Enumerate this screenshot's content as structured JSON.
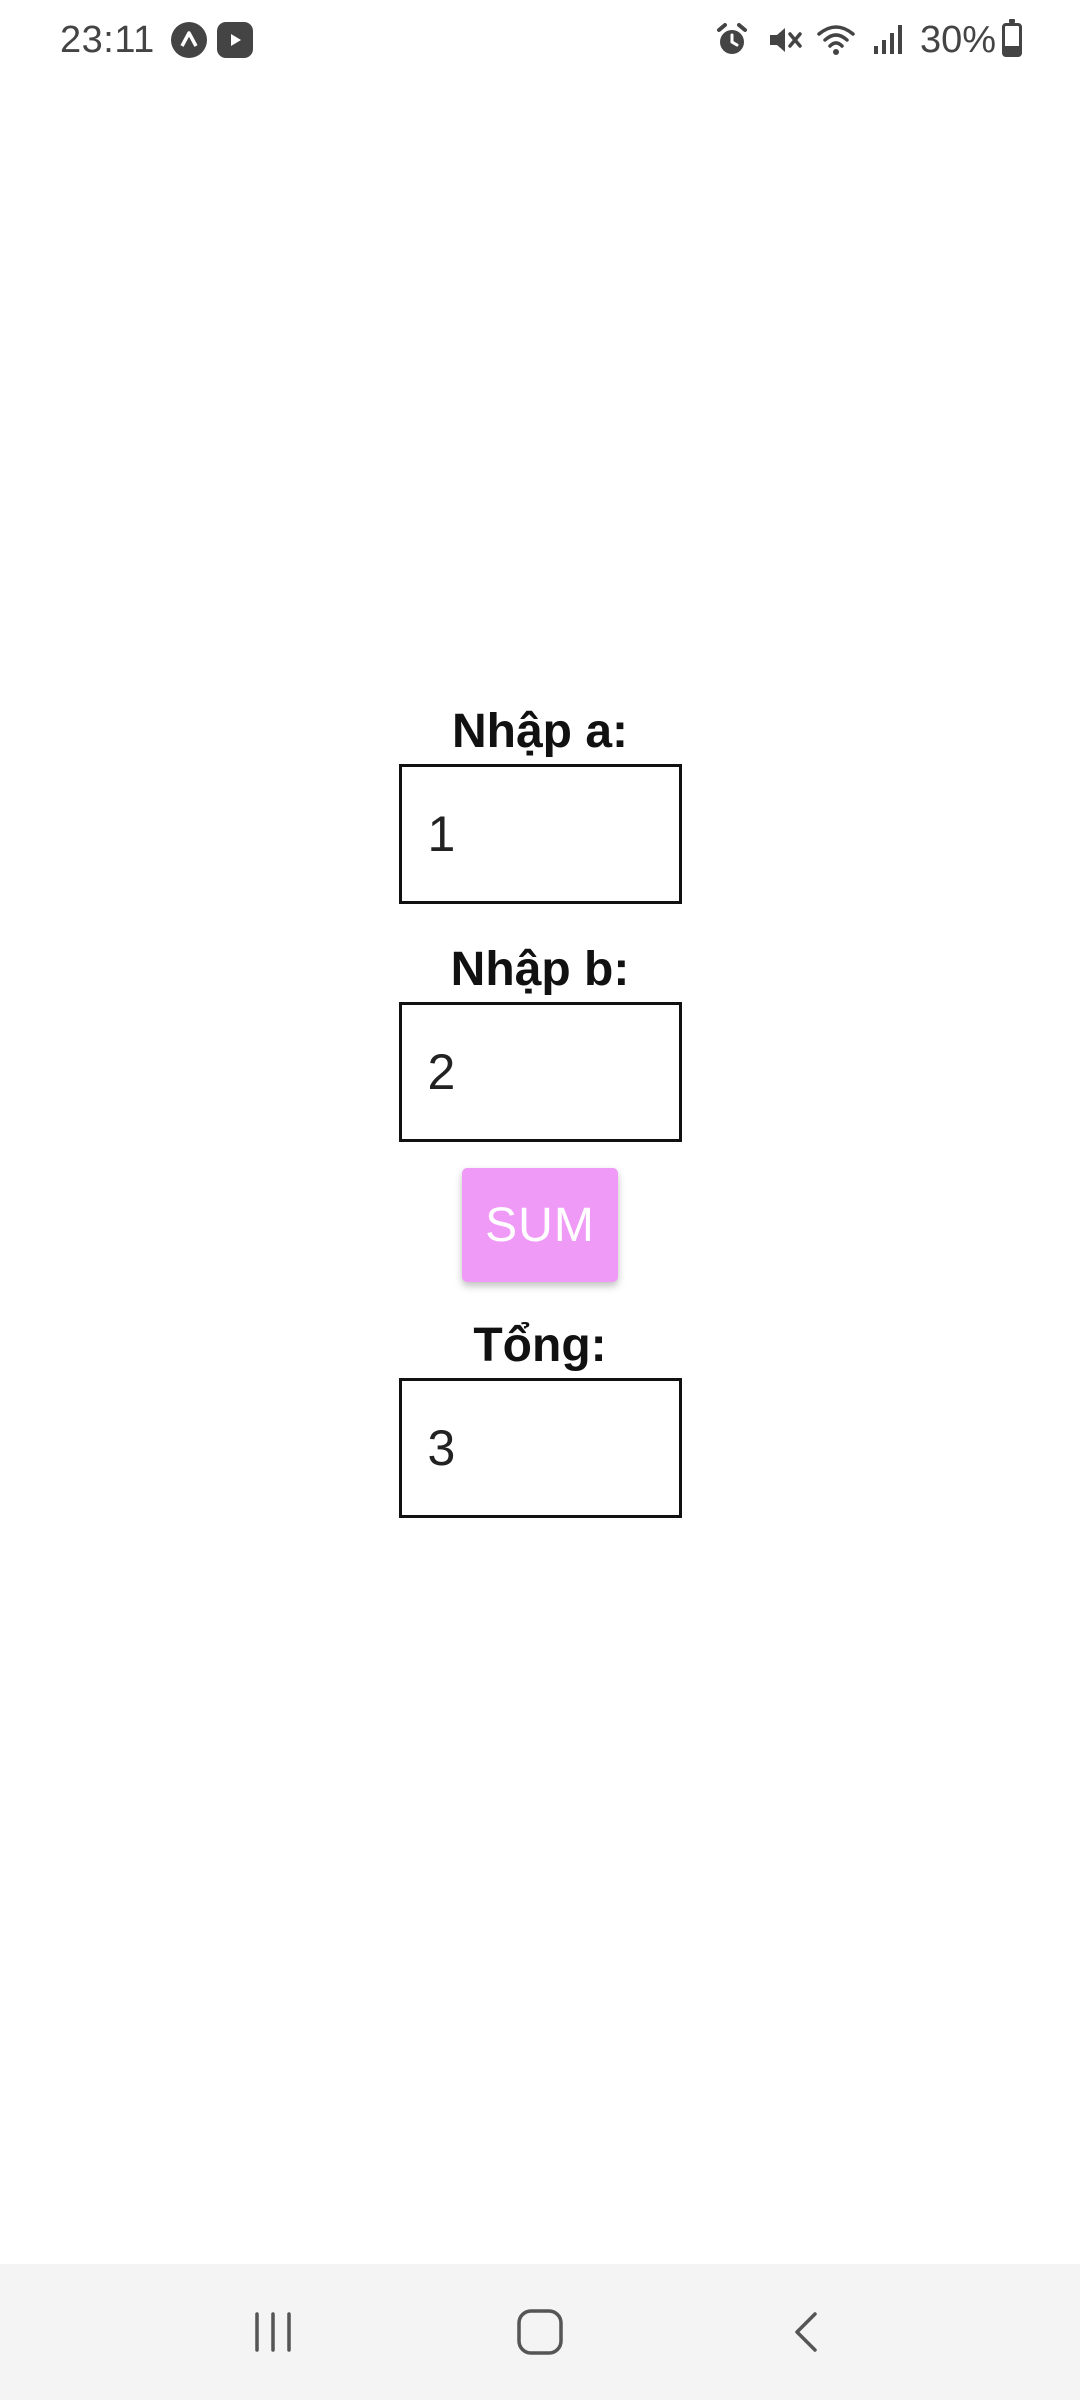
{
  "status_bar": {
    "time": "23:11",
    "battery_percent": "30%",
    "battery_level": 0.3,
    "notification_icons": [
      "app-a-icon",
      "media-app-icon"
    ],
    "system_icons": [
      "alarm-icon",
      "mute-icon",
      "wifi-icon",
      "signal-icon",
      "battery-icon"
    ]
  },
  "form": {
    "field_a": {
      "label": "Nhập a:",
      "value": "1"
    },
    "field_b": {
      "label": "Nhập b:",
      "value": "2"
    },
    "sum_button": {
      "label": "SUM",
      "color": "#f09af8"
    },
    "result": {
      "label": "Tổng:",
      "value": "3"
    }
  },
  "nav_bar": {
    "buttons": [
      "recent-apps-icon",
      "home-icon",
      "back-icon"
    ]
  }
}
